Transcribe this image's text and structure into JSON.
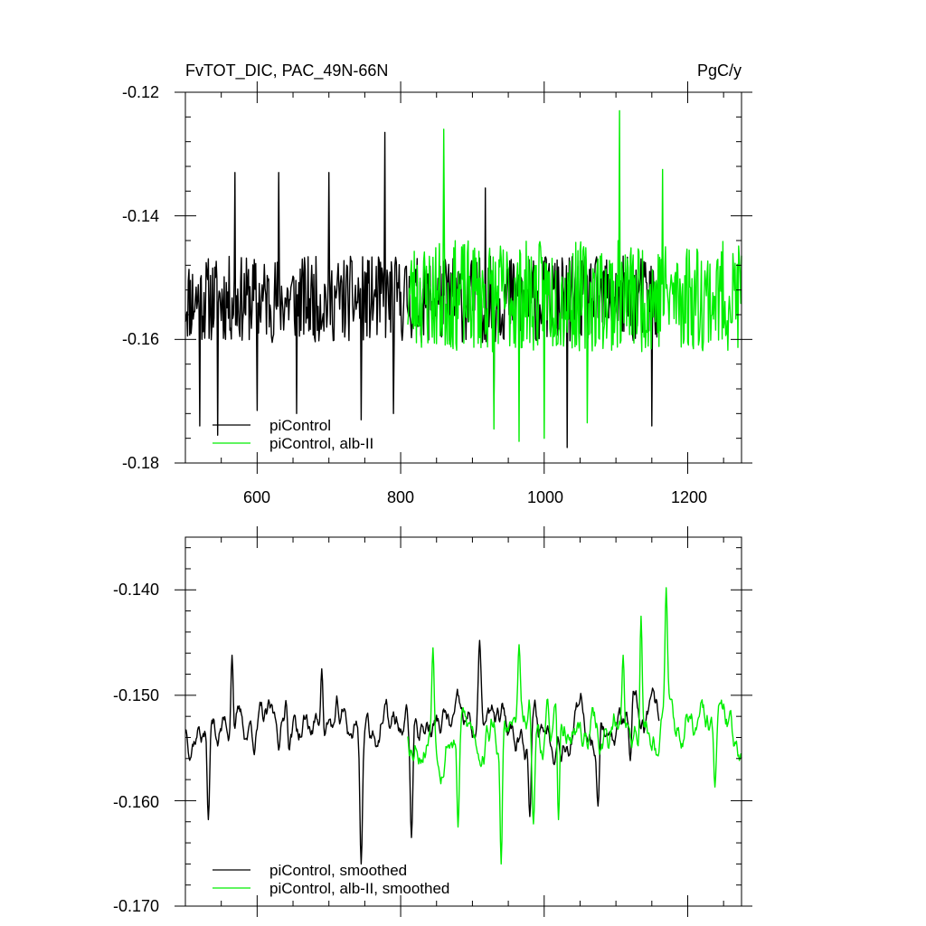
{
  "chart_data": [
    {
      "type": "line",
      "title_left": "FvTOT_DIC, PAC_49N-66N",
      "title_right": "PgC/y",
      "xlim": [
        500,
        1275
      ],
      "ylim": [
        -0.18,
        -0.12
      ],
      "xticks": [
        600,
        800,
        1000,
        1200
      ],
      "xtick_labels": [
        "600",
        "800",
        "1000",
        "1200"
      ],
      "yticks": [
        -0.18,
        -0.16,
        -0.14,
        -0.12
      ],
      "ytick_labels": [
        "-0.18",
        "-0.16",
        "-0.14",
        "-0.12"
      ],
      "legend_position": "bottom-left",
      "series": [
        {
          "name": "piControl",
          "color": "#000000",
          "x_range": [
            500,
            1160
          ],
          "mean": -0.1535,
          "amplitude": 0.007,
          "seed": 11,
          "spikes": [
            [
              520,
              -0.174
            ],
            [
              545,
              -0.1755
            ],
            [
              569,
              -0.133
            ],
            [
              600,
              -0.1715
            ],
            [
              630,
              -0.133
            ],
            [
              655,
              -0.172
            ],
            [
              700,
              -0.133
            ],
            [
              745,
              -0.173
            ],
            [
              778,
              -0.1265
            ],
            [
              790,
              -0.172
            ],
            [
              918,
              -0.1355
            ],
            [
              930,
              -0.171
            ],
            [
              1032,
              -0.1775
            ],
            [
              1150,
              -0.174
            ]
          ]
        },
        {
          "name": "piControl, alb-II",
          "color": "#00ee00",
          "x_range": [
            810,
            1275
          ],
          "mean": -0.153,
          "amplitude": 0.009,
          "seed": 23,
          "spikes": [
            [
              860,
              -0.126
            ],
            [
              930,
              -0.1745
            ],
            [
              965,
              -0.1765
            ],
            [
              1000,
              -0.176
            ],
            [
              1060,
              -0.1735
            ],
            [
              1105,
              -0.123
            ],
            [
              1165,
              -0.1325
            ]
          ]
        }
      ]
    },
    {
      "type": "line",
      "xlim": [
        500,
        1275
      ],
      "ylim": [
        -0.17,
        -0.135
      ],
      "xticks": [
        600,
        800,
        1000,
        1200
      ],
      "yticks": [
        -0.17,
        -0.16,
        -0.15,
        -0.14
      ],
      "ytick_labels": [
        "-0.170",
        "-0.160",
        "-0.150",
        "-0.140"
      ],
      "legend_position": "bottom-left",
      "series": [
        {
          "name": "piControl, smoothed",
          "color": "#000000",
          "x_range": [
            500,
            1160
          ],
          "mean": -0.153,
          "amplitude": 0.0025,
          "seed": 37,
          "spikes": [
            [
              532,
              -0.1618
            ],
            [
              565,
              -0.1462
            ],
            [
              640,
              -0.1505
            ],
            [
              690,
              -0.1475
            ],
            [
              745,
              -0.166
            ],
            [
              815,
              -0.1635
            ],
            [
              910,
              -0.1448
            ],
            [
              980,
              -0.1615
            ],
            [
              1075,
              -0.1605
            ],
            [
              1120,
              -0.1562
            ]
          ]
        },
        {
          "name": "piControl, alb-II, smoothed",
          "color": "#00ee00",
          "x_range": [
            810,
            1275
          ],
          "mean": -0.1535,
          "amplitude": 0.003,
          "seed": 53,
          "spikes": [
            [
              845,
              -0.1455
            ],
            [
              880,
              -0.1625
            ],
            [
              940,
              -0.166
            ],
            [
              965,
              -0.1452
            ],
            [
              985,
              -0.1622
            ],
            [
              1020,
              -0.1618
            ],
            [
              1110,
              -0.1462
            ],
            [
              1135,
              -0.1425
            ],
            [
              1170,
              -0.1398
            ],
            [
              1238,
              -0.1587
            ]
          ]
        }
      ]
    }
  ]
}
